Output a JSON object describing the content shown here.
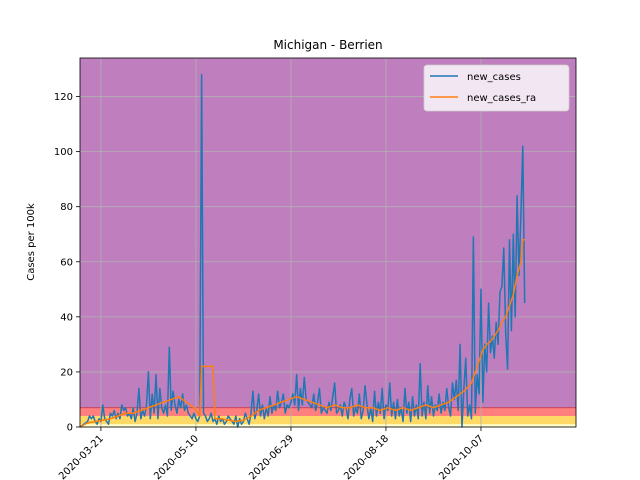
{
  "chart_data": {
    "type": "line",
    "title": "Michigan - Berrien",
    "ylabel": "Cases per 100k",
    "xlabel": "",
    "x_start": "2020-03-10",
    "x_end": "2020-11-26",
    "xlim": [
      "2020-03-10",
      "2020-11-26"
    ],
    "ylim": [
      0,
      134
    ],
    "xticks": [
      "2020-03-21",
      "2020-05-10",
      "2020-06-29",
      "2020-08-18",
      "2020-10-07"
    ],
    "yticks": [
      0,
      20,
      40,
      60,
      80,
      100,
      120
    ],
    "grid": true,
    "legend_position": "top-right",
    "background_bands": [
      {
        "from": 0,
        "to": 1,
        "color": "#ffffcc"
      },
      {
        "from": 1,
        "to": 4,
        "color": "#ffd966"
      },
      {
        "from": 4,
        "to": 7,
        "color": "#ff7f7f"
      },
      {
        "from": 7,
        "to": 134,
        "color": "#bf7fbf"
      }
    ],
    "series": [
      {
        "name": "new_cases",
        "color": "#1f77b4",
        "points": [
          [
            0,
            0
          ],
          [
            2,
            1
          ],
          [
            4,
            2
          ],
          [
            5,
            4
          ],
          [
            6,
            3
          ],
          [
            7,
            4
          ],
          [
            8,
            2
          ],
          [
            9,
            1
          ],
          [
            10,
            3
          ],
          [
            11,
            2
          ],
          [
            12,
            8
          ],
          [
            13,
            3
          ],
          [
            14,
            2
          ],
          [
            15,
            1
          ],
          [
            16,
            5
          ],
          [
            17,
            4
          ],
          [
            18,
            6
          ],
          [
            19,
            3
          ],
          [
            20,
            5
          ],
          [
            21,
            3
          ],
          [
            22,
            8
          ],
          [
            23,
            6
          ],
          [
            24,
            7
          ],
          [
            25,
            4
          ],
          [
            26,
            5
          ],
          [
            27,
            3
          ],
          [
            28,
            7
          ],
          [
            29,
            2
          ],
          [
            30,
            5
          ],
          [
            31,
            14
          ],
          [
            32,
            3
          ],
          [
            33,
            6
          ],
          [
            34,
            4
          ],
          [
            35,
            8
          ],
          [
            36,
            20
          ],
          [
            37,
            3
          ],
          [
            38,
            12
          ],
          [
            39,
            5
          ],
          [
            40,
            19
          ],
          [
            41,
            3
          ],
          [
            42,
            14
          ],
          [
            43,
            7
          ],
          [
            44,
            5
          ],
          [
            45,
            8
          ],
          [
            46,
            4
          ],
          [
            47,
            29
          ],
          [
            48,
            6
          ],
          [
            49,
            13
          ],
          [
            50,
            8
          ],
          [
            51,
            5
          ],
          [
            52,
            10
          ],
          [
            53,
            7
          ],
          [
            54,
            12
          ],
          [
            55,
            6
          ],
          [
            56,
            8
          ],
          [
            57,
            5
          ],
          [
            58,
            4
          ],
          [
            59,
            3
          ],
          [
            60,
            5
          ],
          [
            61,
            3
          ],
          [
            62,
            2
          ],
          [
            63,
            4
          ],
          [
            64,
            128
          ],
          [
            65,
            5
          ],
          [
            66,
            4
          ],
          [
            67,
            2
          ],
          [
            68,
            3
          ],
          [
            69,
            5
          ],
          [
            70,
            2
          ],
          [
            71,
            3
          ],
          [
            72,
            1
          ],
          [
            73,
            4
          ],
          [
            74,
            2
          ],
          [
            75,
            3
          ],
          [
            76,
            1
          ],
          [
            77,
            2
          ],
          [
            78,
            4
          ],
          [
            79,
            3
          ],
          [
            80,
            2
          ],
          [
            81,
            1
          ],
          [
            82,
            4
          ],
          [
            83,
            0
          ],
          [
            84,
            3
          ],
          [
            85,
            1
          ],
          [
            86,
            2
          ],
          [
            87,
            5
          ],
          [
            88,
            3
          ],
          [
            89,
            1
          ],
          [
            90,
            5
          ],
          [
            91,
            13
          ],
          [
            92,
            3
          ],
          [
            93,
            6
          ],
          [
            94,
            12
          ],
          [
            95,
            4
          ],
          [
            96,
            8
          ],
          [
            97,
            3
          ],
          [
            98,
            7
          ],
          [
            99,
            4
          ],
          [
            100,
            11
          ],
          [
            101,
            5
          ],
          [
            102,
            8
          ],
          [
            103,
            6
          ],
          [
            104,
            13
          ],
          [
            105,
            7
          ],
          [
            106,
            9
          ],
          [
            107,
            12
          ],
          [
            108,
            5
          ],
          [
            109,
            8
          ],
          [
            110,
            7
          ],
          [
            111,
            9
          ],
          [
            112,
            12
          ],
          [
            113,
            8
          ],
          [
            114,
            19
          ],
          [
            115,
            6
          ],
          [
            116,
            14
          ],
          [
            117,
            8
          ],
          [
            118,
            18
          ],
          [
            119,
            10
          ],
          [
            120,
            9
          ],
          [
            121,
            8
          ],
          [
            122,
            7
          ],
          [
            123,
            12
          ],
          [
            124,
            6
          ],
          [
            125,
            9
          ],
          [
            126,
            14
          ],
          [
            127,
            5
          ],
          [
            128,
            7
          ],
          [
            129,
            6
          ],
          [
            130,
            5
          ],
          [
            131,
            9
          ],
          [
            132,
            6
          ],
          [
            133,
            11
          ],
          [
            134,
            16
          ],
          [
            135,
            5
          ],
          [
            136,
            6
          ],
          [
            137,
            8
          ],
          [
            138,
            4
          ],
          [
            139,
            9
          ],
          [
            140,
            7
          ],
          [
            141,
            3
          ],
          [
            142,
            10
          ],
          [
            143,
            14
          ],
          [
            144,
            4
          ],
          [
            145,
            7
          ],
          [
            146,
            5
          ],
          [
            147,
            12
          ],
          [
            148,
            3
          ],
          [
            149,
            6
          ],
          [
            150,
            15
          ],
          [
            151,
            8
          ],
          [
            152,
            3
          ],
          [
            153,
            7
          ],
          [
            154,
            2
          ],
          [
            155,
            13
          ],
          [
            156,
            4
          ],
          [
            157,
            9
          ],
          [
            158,
            5
          ],
          [
            159,
            14
          ],
          [
            160,
            3
          ],
          [
            161,
            8
          ],
          [
            162,
            6
          ],
          [
            163,
            16
          ],
          [
            164,
            4
          ],
          [
            165,
            9
          ],
          [
            166,
            3
          ],
          [
            167,
            10
          ],
          [
            168,
            4
          ],
          [
            169,
            7
          ],
          [
            170,
            2
          ],
          [
            171,
            14
          ],
          [
            172,
            5
          ],
          [
            173,
            9
          ],
          [
            174,
            2
          ],
          [
            175,
            11
          ],
          [
            176,
            4
          ],
          [
            177,
            8
          ],
          [
            178,
            3
          ],
          [
            179,
            23
          ],
          [
            180,
            4
          ],
          [
            181,
            9
          ],
          [
            182,
            3
          ],
          [
            183,
            15
          ],
          [
            184,
            5
          ],
          [
            185,
            11
          ],
          [
            186,
            4
          ],
          [
            187,
            8
          ],
          [
            188,
            6
          ],
          [
            189,
            12
          ],
          [
            190,
            5
          ],
          [
            191,
            9
          ],
          [
            192,
            6
          ],
          [
            193,
            14
          ],
          [
            194,
            7
          ],
          [
            195,
            4
          ],
          [
            196,
            16
          ],
          [
            197,
            10
          ],
          [
            198,
            17
          ],
          [
            199,
            6
          ],
          [
            200,
            30
          ],
          [
            201,
            0
          ],
          [
            202,
            14
          ],
          [
            203,
            25
          ],
          [
            204,
            4
          ],
          [
            205,
            8
          ],
          [
            206,
            3
          ],
          [
            207,
            69
          ],
          [
            208,
            5
          ],
          [
            209,
            19
          ],
          [
            210,
            12
          ],
          [
            211,
            50
          ],
          [
            212,
            9
          ],
          [
            213,
            30
          ],
          [
            214,
            20
          ],
          [
            215,
            45
          ],
          [
            216,
            27
          ],
          [
            217,
            33
          ],
          [
            218,
            25
          ],
          [
            219,
            38
          ],
          [
            220,
            30
          ],
          [
            221,
            49
          ],
          [
            222,
            51
          ],
          [
            223,
            65
          ],
          [
            224,
            34
          ],
          [
            225,
            21
          ],
          [
            226,
            68
          ],
          [
            227,
            35
          ],
          [
            228,
            70
          ],
          [
            229,
            40
          ],
          [
            230,
            84
          ],
          [
            231,
            55
          ],
          [
            232,
            77
          ],
          [
            233,
            102
          ],
          [
            234,
            45
          ]
        ]
      },
      {
        "name": "new_cases_ra",
        "color": "#ff7f0e",
        "points": [
          [
            0,
            0
          ],
          [
            4,
            1.5
          ],
          [
            8,
            2
          ],
          [
            12,
            2.5
          ],
          [
            16,
            3
          ],
          [
            20,
            4
          ],
          [
            24,
            5
          ],
          [
            28,
            5
          ],
          [
            32,
            6
          ],
          [
            36,
            7
          ],
          [
            40,
            8
          ],
          [
            44,
            9
          ],
          [
            48,
            10
          ],
          [
            52,
            11
          ],
          [
            56,
            9
          ],
          [
            60,
            7
          ],
          [
            62,
            5
          ],
          [
            63,
            4
          ],
          [
            64,
            22
          ],
          [
            65,
            22
          ],
          [
            66,
            22
          ],
          [
            68,
            22
          ],
          [
            70,
            22
          ],
          [
            71,
            3
          ],
          [
            74,
            3
          ],
          [
            78,
            2.5
          ],
          [
            82,
            2
          ],
          [
            86,
            2.5
          ],
          [
            90,
            4
          ],
          [
            94,
            6
          ],
          [
            98,
            7
          ],
          [
            102,
            8
          ],
          [
            106,
            9
          ],
          [
            110,
            10
          ],
          [
            114,
            11
          ],
          [
            118,
            10
          ],
          [
            122,
            9
          ],
          [
            126,
            8
          ],
          [
            130,
            7
          ],
          [
            134,
            8
          ],
          [
            138,
            7
          ],
          [
            142,
            7
          ],
          [
            146,
            8
          ],
          [
            150,
            7
          ],
          [
            154,
            7
          ],
          [
            158,
            6
          ],
          [
            162,
            7
          ],
          [
            166,
            6
          ],
          [
            170,
            7
          ],
          [
            174,
            6
          ],
          [
            178,
            7
          ],
          [
            182,
            8
          ],
          [
            186,
            7
          ],
          [
            190,
            8
          ],
          [
            194,
            9
          ],
          [
            198,
            11
          ],
          [
            202,
            13
          ],
          [
            206,
            16
          ],
          [
            208,
            20
          ],
          [
            210,
            24
          ],
          [
            212,
            28
          ],
          [
            214,
            30
          ],
          [
            216,
            31
          ],
          [
            218,
            33
          ],
          [
            220,
            35
          ],
          [
            222,
            38
          ],
          [
            224,
            40
          ],
          [
            226,
            44
          ],
          [
            228,
            48
          ],
          [
            230,
            55
          ],
          [
            232,
            60
          ],
          [
            233,
            68
          ],
          [
            234,
            68
          ]
        ]
      }
    ]
  }
}
